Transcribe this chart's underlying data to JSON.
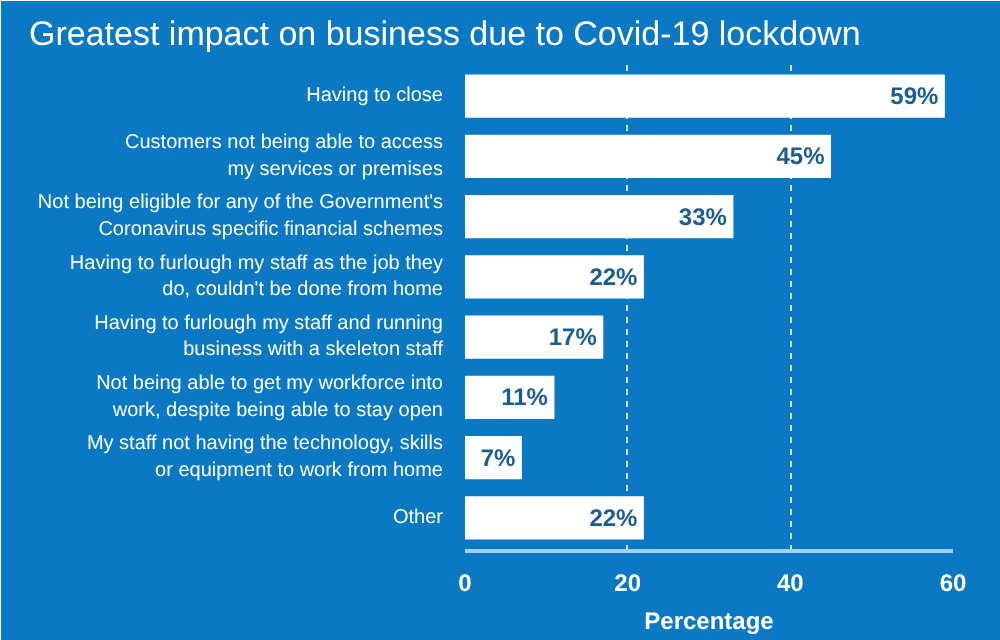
{
  "chart_data": {
    "type": "bar",
    "orientation": "horizontal",
    "title": "Greatest impact on business due to Covid-19 lockdown",
    "categories": [
      "Having to close",
      "Customers not being able to access\nmy services or premises",
      "Not being eligible for any of the Government's\nCoronavirus specific financial schemes",
      "Having to furlough my staff as the job they\ndo, couldn't be done from home",
      "Having to furlough my staff and running\nbusiness with a skeleton staff",
      "Not being able to get my workforce into\nwork, despite being able to stay open",
      "My staff not having the technology, skills\nor equipment to work from home",
      "Other"
    ],
    "values": [
      59,
      45,
      33,
      22,
      17,
      11,
      7,
      22
    ],
    "value_labels": [
      "59%",
      "45%",
      "33%",
      "22%",
      "17%",
      "11%",
      "7%",
      "22%"
    ],
    "color": "#ffffff",
    "xlabel": "Percentage",
    "xlim": [
      0,
      60
    ],
    "xticks": [
      0,
      20,
      40,
      60
    ],
    "grid": "x"
  }
}
